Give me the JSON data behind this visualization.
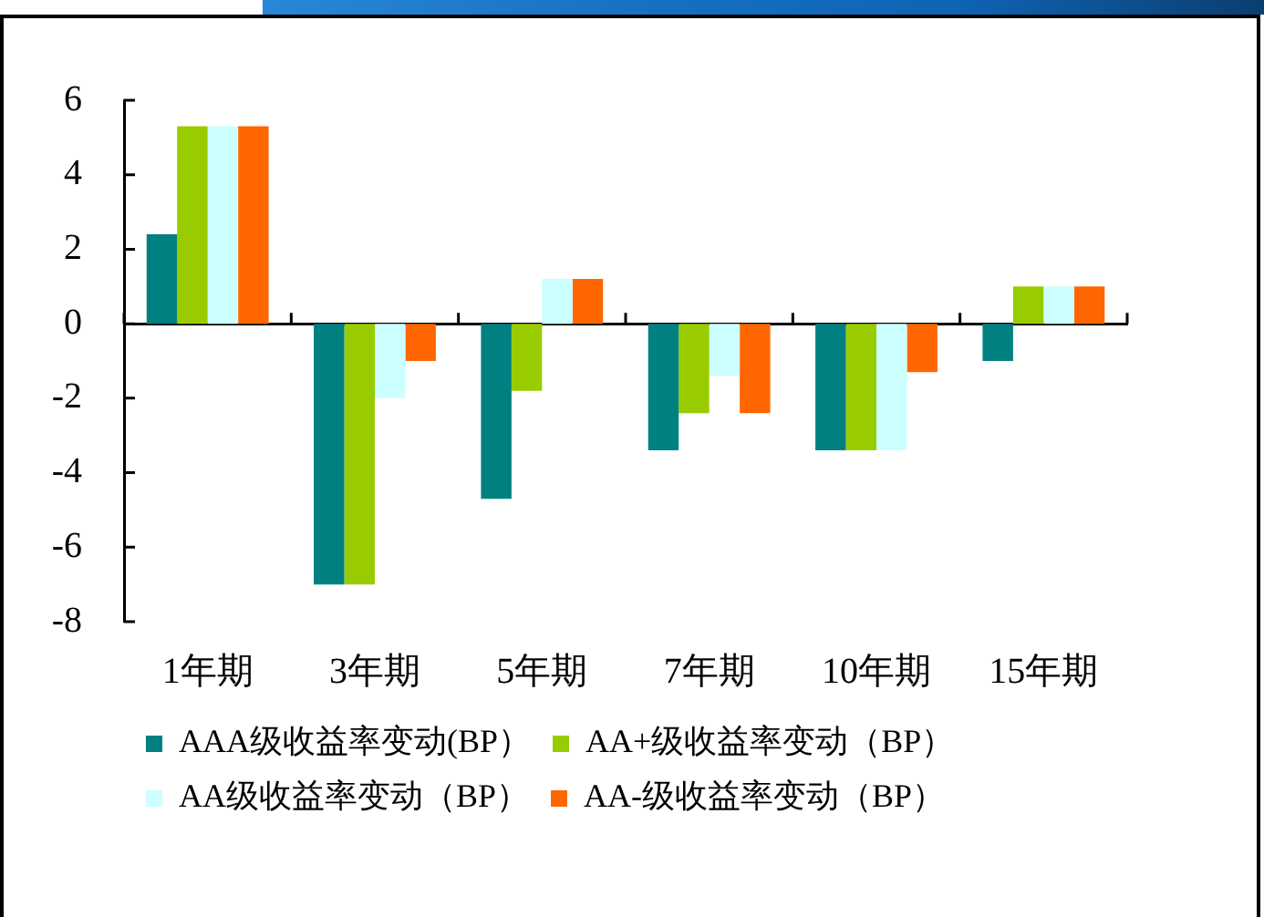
{
  "chart_data": {
    "type": "bar",
    "categories": [
      "1年期",
      "3年期",
      "5年期",
      "7年期",
      "10年期",
      "15年期"
    ],
    "series": [
      {
        "name": "AAA级收益率变动(BP）",
        "color": "#008080",
        "values": [
          2.4,
          -7,
          -4.7,
          -3.4,
          -3.4,
          -1
        ]
      },
      {
        "name": "AA+级收益率变动（BP）",
        "color": "#99cc00",
        "values": [
          5.3,
          -7,
          -1.8,
          -2.4,
          -3.4,
          1
        ]
      },
      {
        "name": "AA级收益率变动（BP）",
        "color": "#ccffff",
        "values": [
          5.3,
          -2,
          1.2,
          -1.4,
          -3.4,
          1
        ]
      },
      {
        "name": "AA-级收益率变动（BP）",
        "color": "#ff6600",
        "values": [
          5.3,
          -1,
          1.2,
          -2.4,
          -1.3,
          1
        ]
      }
    ],
    "ylim": [
      -8,
      6
    ],
    "yticks": [
      -8,
      -6,
      -4,
      -2,
      0,
      2,
      4,
      6
    ],
    "legend": "bottom"
  }
}
